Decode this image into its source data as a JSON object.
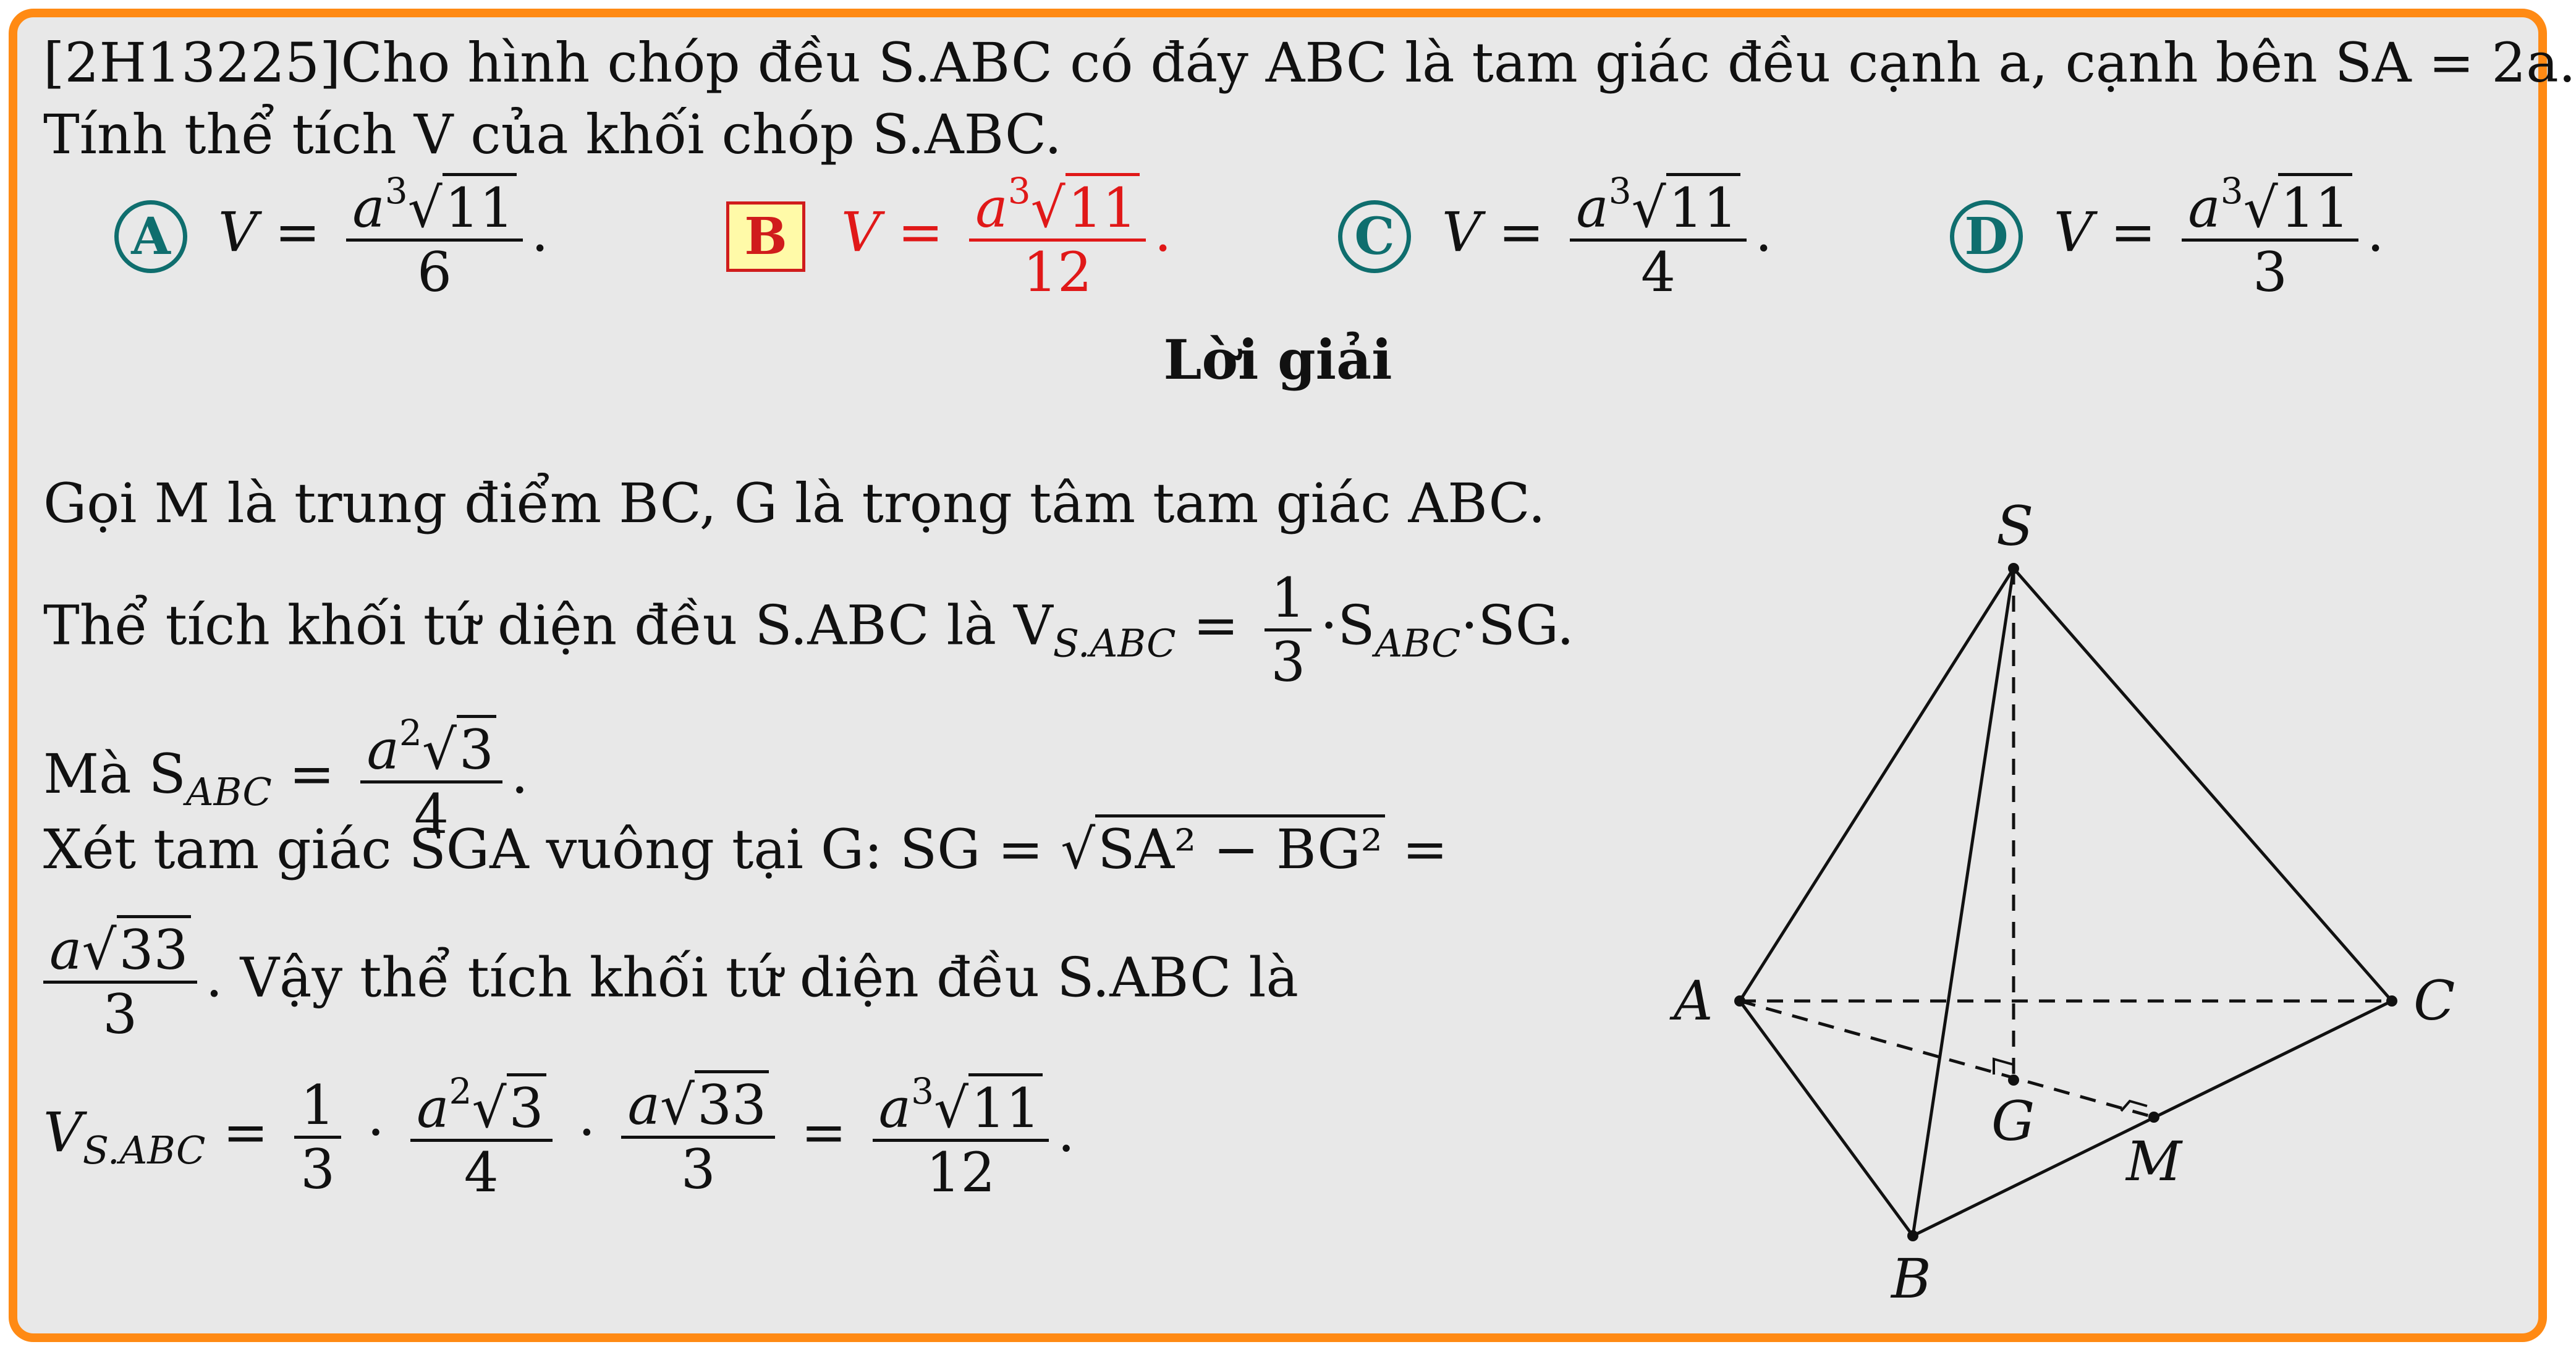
{
  "problem": {
    "line1": "[2H13225]Cho hình chóp đều S.ABC có đáy ABC là tam giác đều cạnh a, cạnh bên SA = 2a.",
    "line2": "Tính thể tích V của khối chóp S.ABC."
  },
  "options": [
    {
      "letter": "A",
      "lhs": "V =",
      "num_a": "a",
      "num_exp": "3",
      "num_rad": "11",
      "den": "6",
      "correct": false
    },
    {
      "letter": "B",
      "lhs": "V =",
      "num_a": "a",
      "num_exp": "3",
      "num_rad": "11",
      "den": "12",
      "correct": true
    },
    {
      "letter": "C",
      "lhs": "V =",
      "num_a": "a",
      "num_exp": "3",
      "num_rad": "11",
      "den": "4",
      "correct": false
    },
    {
      "letter": "D",
      "lhs": "V =",
      "num_a": "a",
      "num_exp": "3",
      "num_rad": "11",
      "den": "3",
      "correct": false
    }
  ],
  "solution": {
    "heading": "Lời giải",
    "s1": "Gọi M là trung điểm BC, G là trọng tâm tam giác ABC.",
    "s2_text": "Thể tích khối tứ diện đều S.ABC là V",
    "s2_sub": "S.ABC",
    "s2_eq": " = ",
    "s2_frac_num": "1",
    "s2_frac_den": "3",
    "s2_tail_pre": "·S",
    "s2_tail_sub": "ABC",
    "s2_tail_post": "·SG.",
    "s3_pre": "Mà S",
    "s3_sub": "ABC",
    "s3_eq": " = ",
    "s3_num_a": "a",
    "s3_num_exp": "2",
    "s3_num_rad": "3",
    "s3_den": "4",
    "s4_pre": "Xét tam giác SGA vuông tại G: SG = ",
    "s4_rad": "SA² − BG²",
    "s4_post": " =",
    "s5_num_a": "a",
    "s5_num_rad": "33",
    "s5_den": "3",
    "s5_text": ". Vậy thể tích khối tứ diện đều S.ABC là",
    "s6_lhs": "V",
    "s6_sub": "S.ABC",
    "s6_eq": " = ",
    "f1_num": "1",
    "f1_den": "3",
    "dot": " · ",
    "f2_num_a": "a",
    "f2_num_exp": "2",
    "f2_num_rad": "3",
    "f2_den": "4",
    "f3_num_a": "a",
    "f3_num_rad": "33",
    "f3_den": "3",
    "f4_num_a": "a",
    "f4_num_exp": "3",
    "f4_num_rad": "11",
    "f4_den": "12",
    "end": "."
  },
  "figure": {
    "labels": {
      "S": "S",
      "A": "A",
      "B": "B",
      "C": "C",
      "G": "G",
      "M": "M"
    }
  },
  "colors": {
    "border": "#ff8a14",
    "background": "#e8e8e8",
    "option_circle": "#0f6e6e",
    "correct": "#e01818",
    "correct_box_bg": "#fffaa8"
  }
}
